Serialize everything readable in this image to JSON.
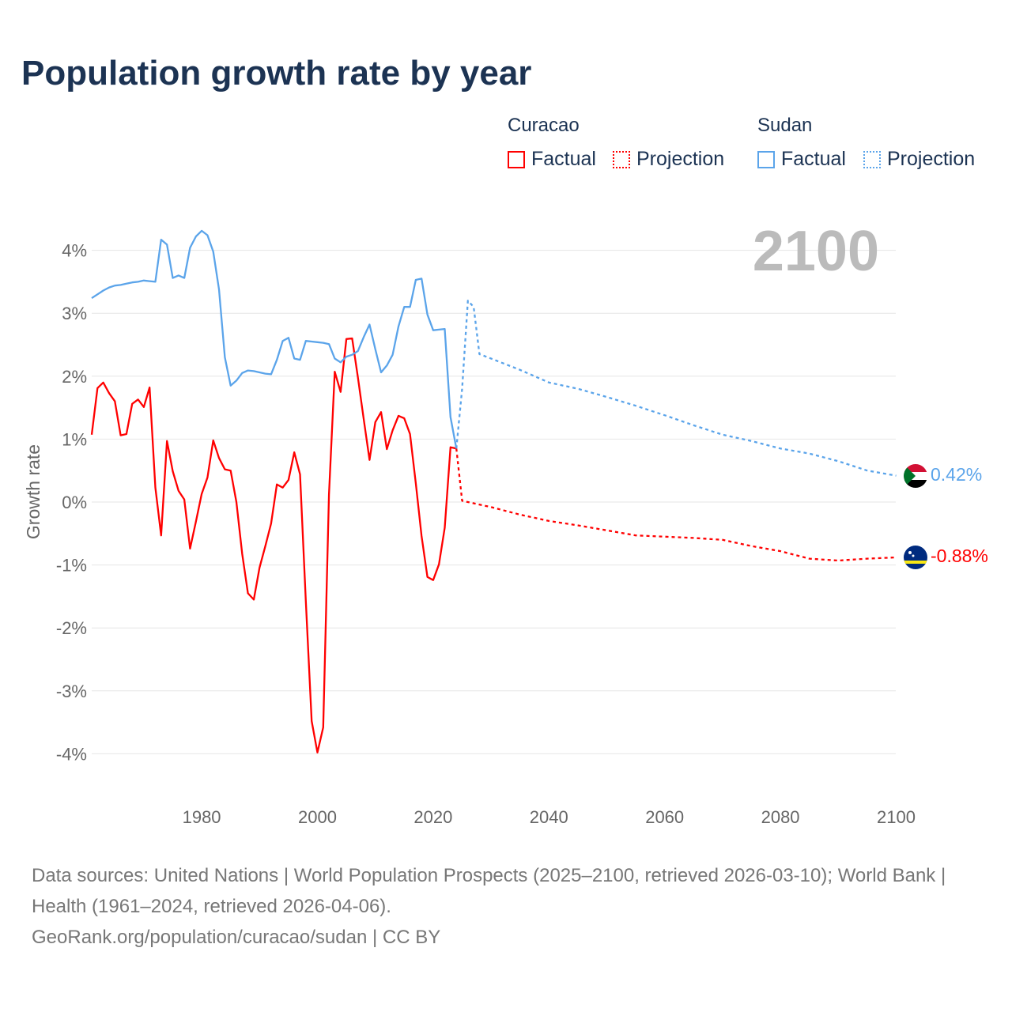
{
  "chart_data": {
    "type": "line",
    "title": "Population growth rate by year",
    "xlabel": "",
    "ylabel": "Growth rate",
    "xlim": [
      1961,
      2100
    ],
    "ylim": [
      -4.6,
      4.6
    ],
    "xticks": [
      1980,
      2000,
      2020,
      2040,
      2060,
      2080,
      2100
    ],
    "yticks": [
      4,
      3,
      2,
      1,
      0,
      -1,
      -2,
      -3,
      -4
    ],
    "ytick_labels": [
      "4%",
      "3%",
      "2%",
      "1%",
      "0%",
      "-1%",
      "-2%",
      "-3%",
      "-4%"
    ],
    "grid": true,
    "year_label": "2100",
    "legend": {
      "placement": "top-right",
      "groups": [
        "Curacao",
        "Sudan"
      ],
      "factual": "Factual",
      "projection": "Projection"
    },
    "series": [
      {
        "name": "Curacao",
        "kind": "Factual",
        "color": "#ff0000",
        "x": [
          1961,
          1962,
          1963,
          1964,
          1965,
          1966,
          1967,
          1968,
          1969,
          1970,
          1971,
          1972,
          1973,
          1974,
          1975,
          1976,
          1977,
          1978,
          1979,
          1980,
          1981,
          1982,
          1983,
          1984,
          1985,
          1986,
          1987,
          1988,
          1989,
          1990,
          1991,
          1992,
          1993,
          1994,
          1995,
          1996,
          1997,
          1998,
          1999,
          2000,
          2001,
          2002,
          2003,
          2004,
          2005,
          2006,
          2007,
          2008,
          2009,
          2010,
          2011,
          2012,
          2013,
          2014,
          2015,
          2016,
          2017,
          2018,
          2019,
          2020,
          2021,
          2022,
          2023,
          2024
        ],
        "y": [
          1.07,
          1.81,
          1.9,
          1.73,
          1.6,
          1.06,
          1.08,
          1.56,
          1.63,
          1.51,
          1.82,
          0.23,
          -0.53,
          0.97,
          0.49,
          0.18,
          0.04,
          -0.74,
          -0.31,
          0.13,
          0.39,
          0.98,
          0.7,
          0.52,
          0.5,
          0.0,
          -0.82,
          -1.45,
          -1.55,
          -1.04,
          -0.7,
          -0.34,
          0.28,
          0.23,
          0.35,
          0.79,
          0.44,
          -1.57,
          -3.48,
          -3.98,
          -3.58,
          0.12,
          2.07,
          1.75,
          2.59,
          2.6,
          1.98,
          1.32,
          0.67,
          1.27,
          1.43,
          0.84,
          1.14,
          1.37,
          1.33,
          1.08,
          0.3,
          -0.54,
          -1.19,
          -1.24,
          -0.99,
          -0.41,
          0.87,
          0.85
        ]
      },
      {
        "name": "Curacao",
        "kind": "Projection",
        "color": "#ff0000",
        "x": [
          2024,
          2025,
          2030,
          2035,
          2040,
          2045,
          2050,
          2055,
          2060,
          2065,
          2070,
          2075,
          2080,
          2085,
          2090,
          2095,
          2100
        ],
        "y": [
          0.85,
          0.02,
          -0.08,
          -0.2,
          -0.3,
          -0.37,
          -0.45,
          -0.53,
          -0.55,
          -0.57,
          -0.6,
          -0.7,
          -0.78,
          -0.9,
          -0.93,
          -0.9,
          -0.88
        ]
      },
      {
        "name": "Sudan",
        "kind": "Factual",
        "color": "#5ba4ea",
        "x": [
          1961,
          1962,
          1963,
          1964,
          1965,
          1966,
          1967,
          1968,
          1969,
          1970,
          1971,
          1972,
          1973,
          1974,
          1975,
          1976,
          1977,
          1978,
          1979,
          1980,
          1981,
          1982,
          1983,
          1984,
          1985,
          1986,
          1987,
          1988,
          1989,
          1990,
          1991,
          1992,
          1993,
          1994,
          1995,
          1996,
          1997,
          1998,
          1999,
          2000,
          2001,
          2002,
          2003,
          2004,
          2005,
          2006,
          2007,
          2008,
          2009,
          2010,
          2011,
          2012,
          2013,
          2014,
          2015,
          2016,
          2017,
          2018,
          2019,
          2020,
          2021,
          2022,
          2023,
          2024
        ],
        "y": [
          3.24,
          3.3,
          3.36,
          3.41,
          3.44,
          3.45,
          3.47,
          3.49,
          3.5,
          3.52,
          3.51,
          3.5,
          4.17,
          4.09,
          3.56,
          3.6,
          3.56,
          4.04,
          4.22,
          4.31,
          4.24,
          3.98,
          3.38,
          2.3,
          1.85,
          1.93,
          2.05,
          2.09,
          2.08,
          2.06,
          2.04,
          2.03,
          2.26,
          2.56,
          2.61,
          2.28,
          2.26,
          2.56,
          2.55,
          2.54,
          2.53,
          2.51,
          2.28,
          2.22,
          2.31,
          2.34,
          2.4,
          2.62,
          2.82,
          2.43,
          2.06,
          2.17,
          2.34,
          2.79,
          3.1,
          3.1,
          3.53,
          3.55,
          2.98,
          2.73,
          2.74,
          2.75,
          1.35,
          0.85
        ]
      },
      {
        "name": "Sudan",
        "kind": "Projection",
        "color": "#5ba4ea",
        "x": [
          2024,
          2025,
          2026,
          2027,
          2028,
          2030,
          2035,
          2040,
          2045,
          2050,
          2055,
          2060,
          2065,
          2070,
          2075,
          2080,
          2085,
          2090,
          2095,
          2100
        ],
        "y": [
          0.85,
          1.8,
          3.2,
          3.1,
          2.35,
          2.28,
          2.1,
          1.9,
          1.8,
          1.67,
          1.53,
          1.38,
          1.22,
          1.07,
          0.97,
          0.85,
          0.77,
          0.65,
          0.5,
          0.42
        ]
      }
    ],
    "end_labels": [
      {
        "name": "Sudan",
        "text": "0.42%",
        "value": 0.42,
        "color": "#5ba4ea"
      },
      {
        "name": "Curacao",
        "text": "-0.88%",
        "value": -0.88,
        "color": "#ff0000"
      }
    ]
  },
  "source": {
    "line1": "Data sources: United Nations | World Population Prospects (2025–2100, retrieved 2026-03-10); World Bank | Health (1961–2024, retrieved 2026-04-06).",
    "line2": "GeoRank.org/population/curacao/sudan | CC BY"
  }
}
